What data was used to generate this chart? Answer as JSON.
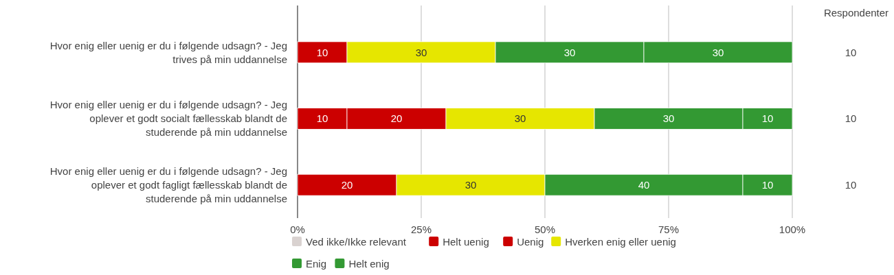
{
  "chart_data": {
    "type": "bar",
    "orientation": "horizontal",
    "stacked": true,
    "categories": [
      "Hvor enig eller uenig er du i følgende udsagn? - Jeg trives på min uddannelse",
      "Hvor enig eller uenig er du i følgende udsagn? - Jeg oplever et godt socialt fællesskab blandt de studerende på min uddannelse",
      "Hvor enig eller uenig er du i følgende udsagn? - Jeg oplever et godt fagligt fællesskab blandt de studerende på min uddannelse"
    ],
    "series": [
      {
        "name": "Ved ikke/Ikke relevant",
        "color": "#d9d2d0",
        "values": [
          null,
          null,
          null
        ]
      },
      {
        "name": "Helt uenig",
        "color": "#cc0000",
        "values": [
          10,
          10,
          null
        ]
      },
      {
        "name": "Uenig",
        "color": "#cc0000",
        "values": [
          null,
          20,
          20
        ]
      },
      {
        "name": "Hverken enig eller uenig",
        "color": "#e6e600",
        "values": [
          30,
          30,
          30
        ]
      },
      {
        "name": "Enig",
        "color": "#339933",
        "values": [
          30,
          30,
          40
        ]
      },
      {
        "name": "Helt enig",
        "color": "#339933",
        "values": [
          30,
          10,
          10
        ]
      }
    ],
    "xlim": [
      0,
      100
    ],
    "xticks": [
      {
        "value": 0,
        "label": "0%"
      },
      {
        "value": 25,
        "label": "25%"
      },
      {
        "value": 50,
        "label": "50%"
      },
      {
        "value": 75,
        "label": "75%"
      },
      {
        "value": 100,
        "label": "100%"
      }
    ],
    "grid": "x",
    "legend": "bottom",
    "data_labels": true,
    "annotations": [
      "Respondenter",
      "10",
      "10",
      "10"
    ]
  }
}
